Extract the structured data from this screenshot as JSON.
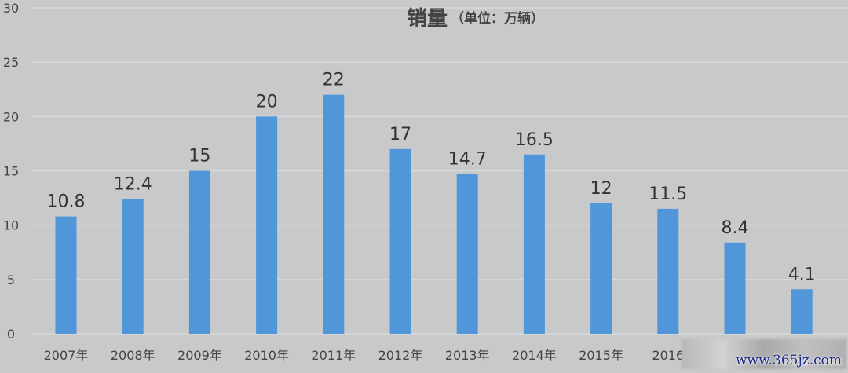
{
  "chart_data": {
    "type": "bar",
    "title": "销量",
    "subtitle": "（单位：万辆）",
    "categories": [
      "2007年",
      "2008年",
      "2009年",
      "2010年",
      "2011年",
      "2012年",
      "2013年",
      "2014年",
      "2015年",
      "2016",
      "",
      ""
    ],
    "values": [
      10.8,
      12.4,
      15,
      20,
      22,
      17,
      14.7,
      16.5,
      12,
      11.5,
      8.4,
      4.1
    ],
    "data_labels": [
      "10.8",
      "12.4",
      "15",
      "20",
      "22",
      "17",
      "14.7",
      "16.5",
      "12",
      "11.5",
      "8.4",
      "4.1"
    ],
    "ylim": [
      0,
      30
    ],
    "yticks": [
      "0",
      "5",
      "10",
      "15",
      "20",
      "25",
      "30"
    ],
    "grid": true,
    "bar_color": "#5196d8",
    "background": "#c8c9cb"
  },
  "watermark": "www.365jz.com"
}
